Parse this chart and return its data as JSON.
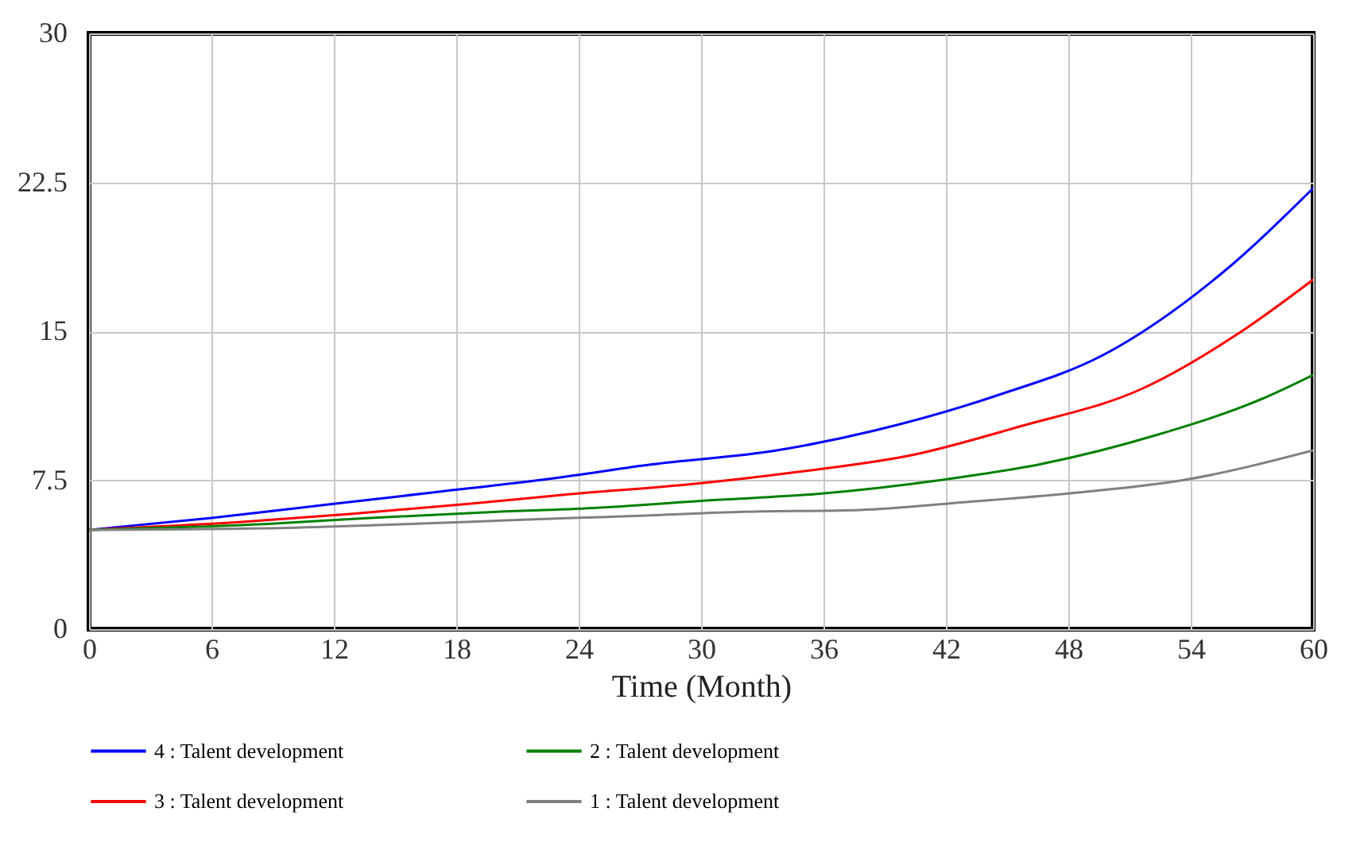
{
  "chart_data": {
    "type": "line",
    "xlabel": "Time (Month)",
    "xlim": [
      0,
      60
    ],
    "xticks": [
      0,
      6,
      12,
      18,
      24,
      30,
      36,
      42,
      48,
      54,
      60
    ],
    "ylim": [
      0,
      30
    ],
    "yticks": [
      0,
      7.5,
      15,
      22.5,
      30
    ],
    "grid": true,
    "legend": "bottom",
    "line_style": "solid",
    "series": [
      {
        "name": "4 : Talent development",
        "color": "#0000ff",
        "x": [
          0,
          6,
          11.9,
          17,
          22.8,
          27.6,
          33.7,
          38.5,
          44.6,
          49.7,
          55.5,
          60
        ],
        "values": [
          5.0,
          5.6,
          6.3,
          6.9,
          7.6,
          8.3,
          9.0,
          10.0,
          11.8,
          13.8,
          17.9,
          22.2
        ]
      },
      {
        "name": "3 : Talent development",
        "color": "#ff0000",
        "x": [
          0,
          7.5,
          12.8,
          18.5,
          23.6,
          29.5,
          34.6,
          40.5,
          45.6,
          51.6,
          56.5,
          60
        ],
        "values": [
          5.0,
          5.4,
          5.8,
          6.3,
          6.8,
          7.3,
          7.9,
          8.8,
          10.2,
          12.1,
          15.0,
          17.6
        ]
      },
      {
        "name": "2 : Talent development",
        "color": "#008000",
        "x": [
          0,
          8.8,
          13.8,
          19.8,
          24.7,
          30.6,
          35.6,
          41.7,
          46.6,
          52.4,
          57.5,
          60
        ],
        "values": [
          5.0,
          5.3,
          5.6,
          5.9,
          6.1,
          6.5,
          6.8,
          7.5,
          8.3,
          9.8,
          11.6,
          12.8
        ]
      },
      {
        "name": "1 : Talent development",
        "color": "#808080",
        "x": [
          0,
          9.8,
          15.8,
          21,
          26.7,
          31.8,
          37.8,
          43,
          48.7,
          53.6,
          60
        ],
        "values": [
          5.0,
          5.1,
          5.3,
          5.5,
          5.7,
          5.9,
          6.0,
          6.4,
          6.9,
          7.5,
          9.0
        ]
      }
    ]
  }
}
